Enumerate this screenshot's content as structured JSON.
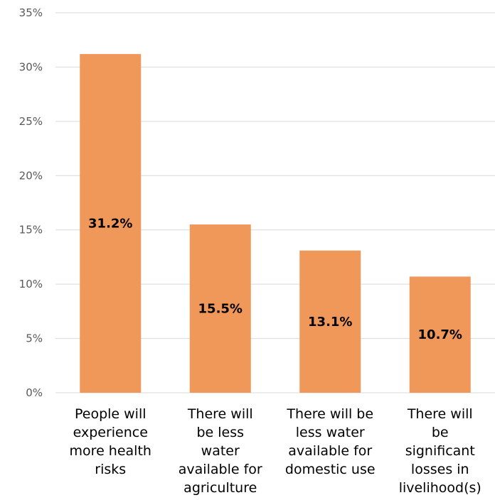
{
  "chart_data": {
    "type": "bar",
    "categories": [
      [
        "People will",
        "experience",
        "more health",
        "risks"
      ],
      [
        "There will",
        "be less",
        "water",
        "available for",
        "agriculture"
      ],
      [
        "There will be",
        "less water",
        "available for",
        "domestic use"
      ],
      [
        "There will",
        "be",
        "significant",
        "losses in",
        "livelihood(s)"
      ]
    ],
    "values": [
      31.2,
      15.5,
      13.1,
      10.7
    ],
    "data_labels": [
      "31.2%",
      "15.5%",
      "13.1%",
      "10.7%"
    ],
    "ylim": [
      0,
      35
    ],
    "yticks": [
      0,
      5,
      10,
      15,
      20,
      25,
      30,
      35
    ],
    "ytick_labels": [
      "0%",
      "5%",
      "10%",
      "15%",
      "20%",
      "25%",
      "30%",
      "35%"
    ],
    "grid": true,
    "bar_color": "#f0975a",
    "title": "",
    "xlabel": "",
    "ylabel": ""
  }
}
